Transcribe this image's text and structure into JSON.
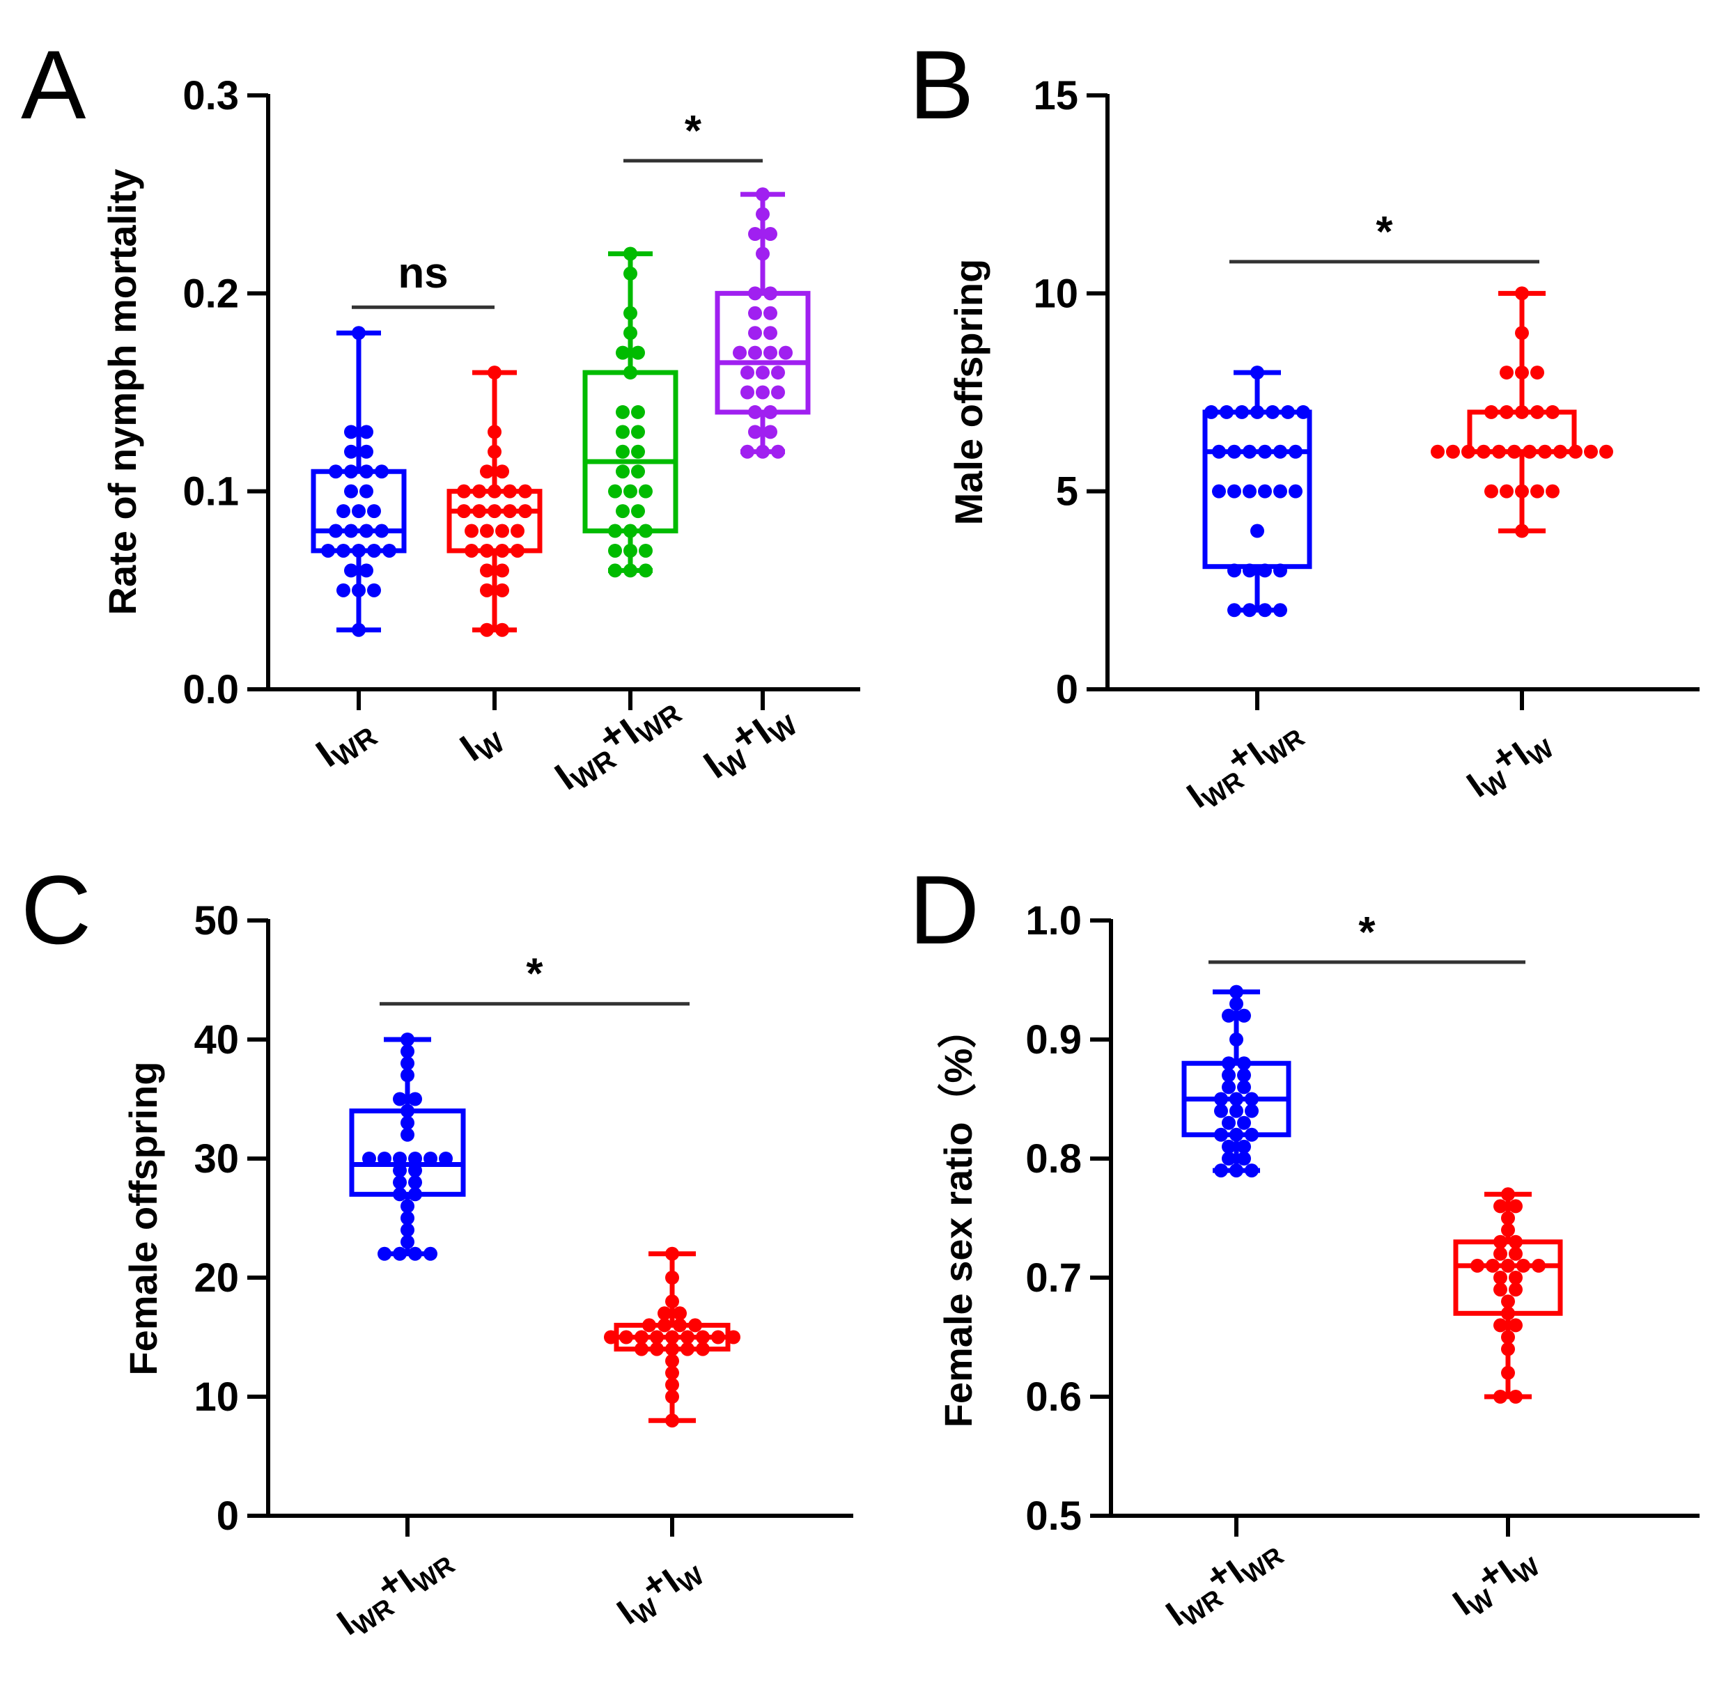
{
  "chart_data": [
    {
      "panel": "A",
      "type": "boxplot",
      "ylabel": "Rate of nymph mortality",
      "ylim": [
        0,
        0.3
      ],
      "yticks": [
        "0.0",
        "0.1",
        "0.2",
        "0.3"
      ],
      "groups": [
        {
          "name": "IWR",
          "label": {
            "main": "I",
            "sub": "WR"
          },
          "color": "#0000FF",
          "min": 0.03,
          "q1": 0.07,
          "median": 0.08,
          "q3": 0.11,
          "max": 0.18,
          "points": [
            0.18,
            0.13,
            0.13,
            0.12,
            0.12,
            0.11,
            0.11,
            0.11,
            0.11,
            0.1,
            0.1,
            0.09,
            0.09,
            0.09,
            0.08,
            0.08,
            0.08,
            0.08,
            0.07,
            0.07,
            0.07,
            0.07,
            0.07,
            0.06,
            0.06,
            0.05,
            0.05,
            0.05,
            0.03
          ]
        },
        {
          "name": "IW",
          "label": {
            "main": "I",
            "sub": "W"
          },
          "color": "#FF0000",
          "min": 0.03,
          "q1": 0.07,
          "median": 0.09,
          "q3": 0.1,
          "max": 0.16,
          "points": [
            0.16,
            0.13,
            0.12,
            0.11,
            0.11,
            0.1,
            0.1,
            0.1,
            0.1,
            0.1,
            0.09,
            0.09,
            0.09,
            0.09,
            0.09,
            0.08,
            0.08,
            0.08,
            0.08,
            0.07,
            0.07,
            0.07,
            0.07,
            0.06,
            0.06,
            0.05,
            0.05,
            0.03,
            0.03
          ]
        },
        {
          "name": "IWR+IWR",
          "label": {
            "main": "I",
            "sub": "WR",
            "plus": "+",
            "main2": "I",
            "sub2": "WR"
          },
          "color": "#00BB00",
          "min": 0.06,
          "q1": 0.08,
          "median": 0.115,
          "q3": 0.16,
          "max": 0.22,
          "points": [
            0.22,
            0.21,
            0.19,
            0.18,
            0.17,
            0.17,
            0.16,
            0.14,
            0.14,
            0.13,
            0.13,
            0.12,
            0.12,
            0.11,
            0.11,
            0.1,
            0.1,
            0.1,
            0.09,
            0.09,
            0.08,
            0.08,
            0.08,
            0.07,
            0.07,
            0.07,
            0.06,
            0.06,
            0.06
          ]
        },
        {
          "name": "IW+IW",
          "label": {
            "main": "I",
            "sub": "W",
            "plus": "+",
            "main2": "I",
            "sub2": "W"
          },
          "color": "#A020F0",
          "min": 0.12,
          "q1": 0.14,
          "median": 0.165,
          "q3": 0.2,
          "max": 0.25,
          "points": [
            0.25,
            0.24,
            0.23,
            0.23,
            0.22,
            0.2,
            0.2,
            0.19,
            0.19,
            0.18,
            0.18,
            0.17,
            0.17,
            0.17,
            0.17,
            0.16,
            0.16,
            0.16,
            0.15,
            0.15,
            0.15,
            0.14,
            0.14,
            0.13,
            0.13,
            0.12,
            0.12,
            0.12
          ]
        }
      ],
      "significance": [
        {
          "from": 0,
          "to": 1,
          "label": "ns",
          "y": 0.193
        },
        {
          "from": 2,
          "to": 3,
          "label": "*",
          "y": 0.267
        }
      ]
    },
    {
      "panel": "B",
      "type": "boxplot",
      "ylabel": "Male offspring",
      "ylim": [
        0,
        15
      ],
      "yticks": [
        "0",
        "5",
        "10",
        "15"
      ],
      "groups": [
        {
          "name": "IWR+IWR",
          "label": {
            "main": "I",
            "sub": "WR",
            "plus": "+",
            "main2": "I",
            "sub2": "WR"
          },
          "color": "#0000FF",
          "min": 2,
          "q1": 3.1,
          "median": 6,
          "q3": 7,
          "max": 8,
          "points": [
            8,
            7,
            7,
            7,
            7,
            7,
            7,
            7,
            6,
            6,
            6,
            6,
            6,
            6,
            5,
            5,
            5,
            5,
            5,
            5,
            4,
            3,
            3,
            3,
            3,
            2,
            2,
            2,
            2
          ]
        },
        {
          "name": "IW+IW",
          "label": {
            "main": "I",
            "sub": "W",
            "plus": "+",
            "main2": "I",
            "sub2": "W"
          },
          "color": "#FF0000",
          "min": 4,
          "q1": 6,
          "median": 6,
          "q3": 7,
          "max": 10,
          "points": [
            10,
            9,
            8,
            8,
            8,
            7,
            7,
            7,
            7,
            7,
            6,
            6,
            6,
            6,
            6,
            6,
            6,
            6,
            6,
            6,
            6,
            6,
            5,
            5,
            5,
            5,
            5,
            4
          ]
        }
      ],
      "significance": [
        {
          "from": 0,
          "to": 1,
          "label": "*",
          "y": 10.8
        }
      ]
    },
    {
      "panel": "C",
      "type": "boxplot",
      "ylabel": "Female offspring",
      "ylim": [
        0,
        50
      ],
      "yticks": [
        "0",
        "10",
        "20",
        "30",
        "40",
        "50"
      ],
      "groups": [
        {
          "name": "IWR+IWR",
          "label": {
            "main": "I",
            "sub": "WR",
            "plus": "+",
            "main2": "I",
            "sub2": "WR"
          },
          "color": "#0000FF",
          "min": 22,
          "q1": 27,
          "median": 29.5,
          "q3": 34,
          "max": 40,
          "points": [
            40,
            39,
            38,
            37,
            35,
            35,
            34,
            33,
            32,
            30,
            30,
            30,
            30,
            30,
            30,
            29,
            29,
            28,
            28,
            27,
            27,
            26,
            25,
            24,
            23,
            22,
            22,
            22,
            22
          ]
        },
        {
          "name": "IW+IW",
          "label": {
            "main": "I",
            "sub": "W",
            "plus": "+",
            "main2": "I",
            "sub2": "W"
          },
          "color": "#FF0000",
          "min": 8,
          "q1": 14,
          "median": 15,
          "q3": 16,
          "max": 22,
          "points": [
            22,
            20,
            18,
            17,
            17,
            16,
            16,
            16,
            16,
            15,
            15,
            15,
            15,
            15,
            15,
            15,
            15,
            15,
            14,
            14,
            14,
            14,
            14,
            13,
            12,
            11,
            10,
            8
          ]
        }
      ],
      "significance": [
        {
          "from": 0,
          "to": 1,
          "label": "*",
          "y": 43
        }
      ]
    },
    {
      "panel": "D",
      "type": "boxplot",
      "ylabel": "Female sex ratio（%）",
      "ylim": [
        0.5,
        1.0
      ],
      "yticks": [
        "0.5",
        "0.6",
        "0.7",
        "0.8",
        "0.9",
        "1.0"
      ],
      "groups": [
        {
          "name": "IWR+IWR",
          "label": {
            "main": "I",
            "sub": "WR",
            "plus": "+",
            "main2": "I",
            "sub2": "WR"
          },
          "color": "#0000FF",
          "min": 0.79,
          "q1": 0.82,
          "median": 0.85,
          "q3": 0.88,
          "max": 0.94,
          "points": [
            0.94,
            0.93,
            0.92,
            0.92,
            0.9,
            0.88,
            0.88,
            0.87,
            0.87,
            0.86,
            0.86,
            0.85,
            0.85,
            0.85,
            0.84,
            0.84,
            0.84,
            0.83,
            0.83,
            0.82,
            0.82,
            0.82,
            0.81,
            0.81,
            0.8,
            0.8,
            0.79,
            0.79,
            0.79
          ]
        },
        {
          "name": "IW+IW",
          "label": {
            "main": "I",
            "sub": "W",
            "plus": "+",
            "main2": "I",
            "sub2": "W"
          },
          "color": "#FF0000",
          "min": 0.6,
          "q1": 0.67,
          "median": 0.71,
          "q3": 0.73,
          "max": 0.77,
          "points": [
            0.77,
            0.76,
            0.76,
            0.75,
            0.74,
            0.73,
            0.73,
            0.72,
            0.72,
            0.71,
            0.71,
            0.71,
            0.71,
            0.71,
            0.7,
            0.7,
            0.69,
            0.69,
            0.68,
            0.67,
            0.66,
            0.66,
            0.65,
            0.64,
            0.62,
            0.6,
            0.6
          ]
        }
      ],
      "significance": [
        {
          "from": 0,
          "to": 1,
          "label": "*",
          "y": 0.965
        }
      ]
    }
  ]
}
